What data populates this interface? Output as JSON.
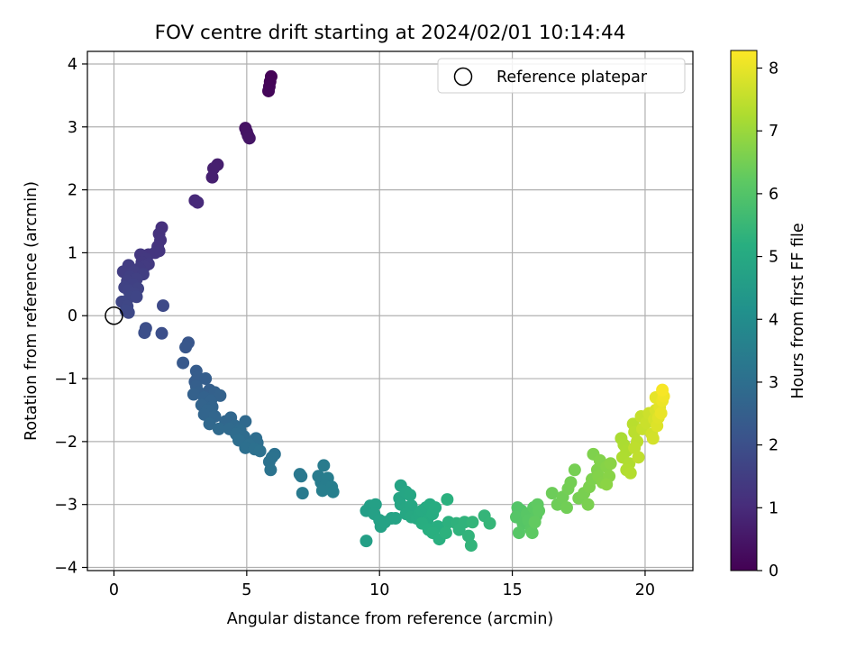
{
  "chart_data": {
    "type": "scatter",
    "title": "FOV centre drift starting at 2024/02/01 10:14:44",
    "xlabel": "Angular distance from reference (arcmin)",
    "ylabel": "Rotation from reference (arcmin)",
    "xlim": [
      -1.0,
      21.8
    ],
    "ylim": [
      -4.05,
      4.2
    ],
    "xticks": [
      0,
      5,
      10,
      15,
      20
    ],
    "yticks": [
      -4,
      -3,
      -2,
      -1,
      0,
      1,
      2,
      3,
      4
    ],
    "grid": true,
    "legend": {
      "placement": "upper-right",
      "entries": [
        "Reference platepar"
      ]
    },
    "reference_point": {
      "name": "Reference platepar",
      "x": 0,
      "y": 0
    },
    "colorbar": {
      "label": "Hours from first FF file",
      "colormap": "viridis",
      "min": 0,
      "max": 8.28,
      "ticks": [
        0,
        1,
        2,
        3,
        4,
        5,
        6,
        7,
        8
      ]
    },
    "points": [
      {
        "x": 5.92,
        "y": 3.8,
        "c": 0.05
      },
      {
        "x": 5.88,
        "y": 3.72,
        "c": 0.08
      },
      {
        "x": 5.85,
        "y": 3.64,
        "c": 0.1
      },
      {
        "x": 5.82,
        "y": 3.57,
        "c": 0.12
      },
      {
        "x": 4.95,
        "y": 2.98,
        "c": 0.4
      },
      {
        "x": 5.0,
        "y": 2.92,
        "c": 0.42
      },
      {
        "x": 5.05,
        "y": 2.86,
        "c": 0.44
      },
      {
        "x": 5.1,
        "y": 2.82,
        "c": 0.46
      },
      {
        "x": 3.9,
        "y": 2.4,
        "c": 0.7
      },
      {
        "x": 3.75,
        "y": 2.34,
        "c": 0.72
      },
      {
        "x": 3.7,
        "y": 2.2,
        "c": 0.74
      },
      {
        "x": 3.05,
        "y": 1.83,
        "c": 0.95
      },
      {
        "x": 3.15,
        "y": 1.8,
        "c": 0.97
      },
      {
        "x": 1.8,
        "y": 1.4,
        "c": 1.15
      },
      {
        "x": 1.7,
        "y": 1.3,
        "c": 1.18
      },
      {
        "x": 1.75,
        "y": 1.2,
        "c": 1.2
      },
      {
        "x": 1.65,
        "y": 1.1,
        "c": 1.23
      },
      {
        "x": 1.7,
        "y": 1.03,
        "c": 1.25
      },
      {
        "x": 1.55,
        "y": 1.0,
        "c": 1.28
      },
      {
        "x": 1.3,
        "y": 0.97,
        "c": 1.3
      },
      {
        "x": 1.0,
        "y": 0.97,
        "c": 1.33
      },
      {
        "x": 1.2,
        "y": 0.9,
        "c": 1.36
      },
      {
        "x": 1.05,
        "y": 0.85,
        "c": 1.38
      },
      {
        "x": 1.3,
        "y": 0.82,
        "c": 1.4
      },
      {
        "x": 1.15,
        "y": 0.78,
        "c": 1.42
      },
      {
        "x": 0.95,
        "y": 0.75,
        "c": 1.44
      },
      {
        "x": 0.55,
        "y": 0.8,
        "c": 1.46
      },
      {
        "x": 0.35,
        "y": 0.7,
        "c": 1.48
      },
      {
        "x": 0.75,
        "y": 0.7,
        "c": 1.5
      },
      {
        "x": 1.1,
        "y": 0.66,
        "c": 1.52
      },
      {
        "x": 0.6,
        "y": 0.62,
        "c": 1.54
      },
      {
        "x": 0.85,
        "y": 0.58,
        "c": 1.56
      },
      {
        "x": 0.5,
        "y": 0.55,
        "c": 1.58
      },
      {
        "x": 0.7,
        "y": 0.5,
        "c": 1.6
      },
      {
        "x": 0.4,
        "y": 0.45,
        "c": 1.62
      },
      {
        "x": 0.9,
        "y": 0.43,
        "c": 1.64
      },
      {
        "x": 0.55,
        "y": 0.4,
        "c": 1.66
      },
      {
        "x": 0.75,
        "y": 0.35,
        "c": 1.68
      },
      {
        "x": 0.6,
        "y": 0.3,
        "c": 1.7
      },
      {
        "x": 0.85,
        "y": 0.3,
        "c": 1.72
      },
      {
        "x": 0.3,
        "y": 0.22,
        "c": 1.74
      },
      {
        "x": 0.5,
        "y": 0.15,
        "c": 1.76
      },
      {
        "x": 0.45,
        "y": 0.08,
        "c": 1.78
      },
      {
        "x": 0.55,
        "y": 0.05,
        "c": 1.8
      },
      {
        "x": 1.85,
        "y": 0.16,
        "c": 1.85
      },
      {
        "x": 1.2,
        "y": -0.2,
        "c": 1.95
      },
      {
        "x": 1.15,
        "y": -0.27,
        "c": 1.98
      },
      {
        "x": 1.8,
        "y": -0.28,
        "c": 2.0
      },
      {
        "x": 2.8,
        "y": -0.43,
        "c": 2.2
      },
      {
        "x": 2.7,
        "y": -0.5,
        "c": 2.22
      },
      {
        "x": 2.6,
        "y": -0.75,
        "c": 2.3
      },
      {
        "x": 3.1,
        "y": -0.88,
        "c": 2.4
      },
      {
        "x": 3.15,
        "y": -0.98,
        "c": 2.42
      },
      {
        "x": 3.05,
        "y": -1.05,
        "c": 2.44
      },
      {
        "x": 3.45,
        "y": -1.0,
        "c": 2.46
      },
      {
        "x": 3.1,
        "y": -1.12,
        "c": 2.48
      },
      {
        "x": 3.6,
        "y": -1.18,
        "c": 2.5
      },
      {
        "x": 3.2,
        "y": -1.22,
        "c": 2.52
      },
      {
        "x": 3.0,
        "y": -1.25,
        "c": 2.54
      },
      {
        "x": 3.8,
        "y": -1.22,
        "c": 2.56
      },
      {
        "x": 4.0,
        "y": -1.27,
        "c": 2.58
      },
      {
        "x": 3.4,
        "y": -1.3,
        "c": 2.6
      },
      {
        "x": 3.65,
        "y": -1.35,
        "c": 2.62
      },
      {
        "x": 3.3,
        "y": -1.42,
        "c": 2.64
      },
      {
        "x": 3.7,
        "y": -1.45,
        "c": 2.66
      },
      {
        "x": 3.5,
        "y": -1.5,
        "c": 2.68
      },
      {
        "x": 3.4,
        "y": -1.57,
        "c": 2.7
      },
      {
        "x": 3.8,
        "y": -1.6,
        "c": 2.72
      },
      {
        "x": 4.4,
        "y": -1.62,
        "c": 2.74
      },
      {
        "x": 4.2,
        "y": -1.68,
        "c": 2.76
      },
      {
        "x": 3.6,
        "y": -1.72,
        "c": 2.78
      },
      {
        "x": 4.95,
        "y": -1.68,
        "c": 2.8
      },
      {
        "x": 4.55,
        "y": -1.75,
        "c": 2.82
      },
      {
        "x": 3.95,
        "y": -1.8,
        "c": 2.84
      },
      {
        "x": 4.35,
        "y": -1.8,
        "c": 2.86
      },
      {
        "x": 4.75,
        "y": -1.82,
        "c": 2.88
      },
      {
        "x": 4.6,
        "y": -1.88,
        "c": 2.9
      },
      {
        "x": 4.9,
        "y": -1.92,
        "c": 2.92
      },
      {
        "x": 5.35,
        "y": -1.95,
        "c": 2.94
      },
      {
        "x": 4.7,
        "y": -1.98,
        "c": 2.96
      },
      {
        "x": 5.4,
        "y": -2.02,
        "c": 2.98
      },
      {
        "x": 5.1,
        "y": -2.05,
        "c": 3.0
      },
      {
        "x": 4.95,
        "y": -2.1,
        "c": 3.02
      },
      {
        "x": 5.3,
        "y": -2.12,
        "c": 3.04
      },
      {
        "x": 5.5,
        "y": -2.15,
        "c": 3.06
      },
      {
        "x": 6.05,
        "y": -2.2,
        "c": 3.08
      },
      {
        "x": 5.95,
        "y": -2.25,
        "c": 3.1
      },
      {
        "x": 5.85,
        "y": -2.32,
        "c": 3.12
      },
      {
        "x": 5.9,
        "y": -2.45,
        "c": 3.14
      },
      {
        "x": 7.0,
        "y": -2.52,
        "c": 3.3
      },
      {
        "x": 7.05,
        "y": -2.55,
        "c": 3.32
      },
      {
        "x": 7.1,
        "y": -2.82,
        "c": 3.36
      },
      {
        "x": 7.7,
        "y": -2.55,
        "c": 3.4
      },
      {
        "x": 7.9,
        "y": -2.38,
        "c": 3.42
      },
      {
        "x": 7.8,
        "y": -2.65,
        "c": 3.44
      },
      {
        "x": 8.05,
        "y": -2.58,
        "c": 3.46
      },
      {
        "x": 7.95,
        "y": -2.7,
        "c": 3.48
      },
      {
        "x": 7.85,
        "y": -2.78,
        "c": 3.5
      },
      {
        "x": 8.2,
        "y": -2.72,
        "c": 3.52
      },
      {
        "x": 8.25,
        "y": -2.8,
        "c": 3.54
      },
      {
        "x": 9.5,
        "y": -3.1,
        "c": 4.6
      },
      {
        "x": 9.65,
        "y": -3.02,
        "c": 4.62
      },
      {
        "x": 9.5,
        "y": -3.58,
        "c": 4.64
      },
      {
        "x": 9.85,
        "y": -3.0,
        "c": 4.66
      },
      {
        "x": 9.8,
        "y": -3.15,
        "c": 4.68
      },
      {
        "x": 10.0,
        "y": -3.25,
        "c": 4.7
      },
      {
        "x": 10.05,
        "y": -3.35,
        "c": 4.72
      },
      {
        "x": 10.2,
        "y": -3.28,
        "c": 4.74
      },
      {
        "x": 10.45,
        "y": -3.22,
        "c": 4.76
      },
      {
        "x": 10.6,
        "y": -3.22,
        "c": 4.78
      },
      {
        "x": 10.8,
        "y": -2.7,
        "c": 4.8
      },
      {
        "x": 10.75,
        "y": -2.9,
        "c": 4.82
      },
      {
        "x": 10.8,
        "y": -3.0,
        "c": 4.84
      },
      {
        "x": 11.0,
        "y": -2.8,
        "c": 4.86
      },
      {
        "x": 11.15,
        "y": -2.85,
        "c": 4.88
      },
      {
        "x": 11.0,
        "y": -3.05,
        "c": 4.9
      },
      {
        "x": 11.2,
        "y": -3.02,
        "c": 4.92
      },
      {
        "x": 11.0,
        "y": -3.15,
        "c": 4.94
      },
      {
        "x": 11.2,
        "y": -3.2,
        "c": 4.96
      },
      {
        "x": 11.4,
        "y": -3.22,
        "c": 4.98
      },
      {
        "x": 11.5,
        "y": -3.15,
        "c": 5.0
      },
      {
        "x": 11.6,
        "y": -3.1,
        "c": 5.02
      },
      {
        "x": 11.75,
        "y": -3.05,
        "c": 5.04
      },
      {
        "x": 11.8,
        "y": -3.25,
        "c": 5.06
      },
      {
        "x": 11.9,
        "y": -3.0,
        "c": 5.08
      },
      {
        "x": 12.0,
        "y": -3.15,
        "c": 5.1
      },
      {
        "x": 12.1,
        "y": -3.05,
        "c": 5.12
      },
      {
        "x": 11.6,
        "y": -3.3,
        "c": 5.14
      },
      {
        "x": 11.85,
        "y": -3.4,
        "c": 5.16
      },
      {
        "x": 12.2,
        "y": -3.35,
        "c": 5.18
      },
      {
        "x": 12.0,
        "y": -3.45,
        "c": 5.2
      },
      {
        "x": 12.25,
        "y": -3.55,
        "c": 5.22
      },
      {
        "x": 12.55,
        "y": -2.92,
        "c": 5.24
      },
      {
        "x": 12.6,
        "y": -3.28,
        "c": 5.26
      },
      {
        "x": 12.5,
        "y": -3.45,
        "c": 5.28
      },
      {
        "x": 12.9,
        "y": -3.3,
        "c": 5.3
      },
      {
        "x": 13.0,
        "y": -3.4,
        "c": 5.32
      },
      {
        "x": 13.2,
        "y": -3.28,
        "c": 5.34
      },
      {
        "x": 13.35,
        "y": -3.5,
        "c": 5.36
      },
      {
        "x": 13.45,
        "y": -3.65,
        "c": 5.38
      },
      {
        "x": 13.5,
        "y": -3.28,
        "c": 5.4
      },
      {
        "x": 13.95,
        "y": -3.18,
        "c": 5.42
      },
      {
        "x": 14.15,
        "y": -3.3,
        "c": 5.44
      },
      {
        "x": 15.2,
        "y": -3.05,
        "c": 6.0
      },
      {
        "x": 15.35,
        "y": -3.1,
        "c": 6.02
      },
      {
        "x": 15.15,
        "y": -3.2,
        "c": 6.04
      },
      {
        "x": 15.4,
        "y": -3.3,
        "c": 6.06
      },
      {
        "x": 15.25,
        "y": -3.45,
        "c": 6.08
      },
      {
        "x": 15.55,
        "y": -3.15,
        "c": 6.1
      },
      {
        "x": 15.6,
        "y": -3.25,
        "c": 6.12
      },
      {
        "x": 15.7,
        "y": -3.4,
        "c": 6.14
      },
      {
        "x": 15.8,
        "y": -3.05,
        "c": 6.16
      },
      {
        "x": 15.9,
        "y": -3.18,
        "c": 6.18
      },
      {
        "x": 15.75,
        "y": -3.45,
        "c": 6.2
      },
      {
        "x": 15.95,
        "y": -3.0,
        "c": 6.22
      },
      {
        "x": 16.0,
        "y": -3.1,
        "c": 6.24
      },
      {
        "x": 15.85,
        "y": -3.28,
        "c": 6.26
      },
      {
        "x": 16.5,
        "y": -2.82,
        "c": 6.4
      },
      {
        "x": 16.7,
        "y": -3.0,
        "c": 6.42
      },
      {
        "x": 16.9,
        "y": -2.88,
        "c": 6.44
      },
      {
        "x": 17.05,
        "y": -3.05,
        "c": 6.46
      },
      {
        "x": 17.1,
        "y": -2.75,
        "c": 6.48
      },
      {
        "x": 17.2,
        "y": -2.65,
        "c": 6.5
      },
      {
        "x": 17.35,
        "y": -2.45,
        "c": 6.52
      },
      {
        "x": 17.5,
        "y": -2.9,
        "c": 6.54
      },
      {
        "x": 17.7,
        "y": -2.82,
        "c": 6.56
      },
      {
        "x": 17.85,
        "y": -3.0,
        "c": 6.58
      },
      {
        "x": 17.9,
        "y": -2.72,
        "c": 6.6
      },
      {
        "x": 18.0,
        "y": -2.6,
        "c": 6.62
      },
      {
        "x": 18.05,
        "y": -2.2,
        "c": 6.64
      },
      {
        "x": 18.2,
        "y": -2.45,
        "c": 6.66
      },
      {
        "x": 18.3,
        "y": -2.3,
        "c": 6.68
      },
      {
        "x": 18.25,
        "y": -2.55,
        "c": 6.7
      },
      {
        "x": 18.4,
        "y": -2.65,
        "c": 6.72
      },
      {
        "x": 18.55,
        "y": -2.4,
        "c": 6.74
      },
      {
        "x": 18.65,
        "y": -2.55,
        "c": 6.76
      },
      {
        "x": 18.7,
        "y": -2.35,
        "c": 6.78
      },
      {
        "x": 18.55,
        "y": -2.68,
        "c": 6.8
      },
      {
        "x": 19.1,
        "y": -1.95,
        "c": 7.2
      },
      {
        "x": 19.2,
        "y": -2.05,
        "c": 7.22
      },
      {
        "x": 19.3,
        "y": -2.15,
        "c": 7.24
      },
      {
        "x": 19.15,
        "y": -2.25,
        "c": 7.26
      },
      {
        "x": 19.4,
        "y": -2.35,
        "c": 7.28
      },
      {
        "x": 19.3,
        "y": -2.45,
        "c": 7.3
      },
      {
        "x": 19.45,
        "y": -2.5,
        "c": 7.32
      },
      {
        "x": 19.55,
        "y": -1.72,
        "c": 7.4
      },
      {
        "x": 19.6,
        "y": -1.85,
        "c": 7.42
      },
      {
        "x": 19.7,
        "y": -2.0,
        "c": 7.44
      },
      {
        "x": 19.6,
        "y": -2.1,
        "c": 7.46
      },
      {
        "x": 19.75,
        "y": -2.25,
        "c": 7.48
      },
      {
        "x": 19.85,
        "y": -1.6,
        "c": 7.55
      },
      {
        "x": 19.9,
        "y": -1.8,
        "c": 7.58
      },
      {
        "x": 20.05,
        "y": -1.7,
        "c": 7.62
      },
      {
        "x": 20.15,
        "y": -1.55,
        "c": 7.66
      },
      {
        "x": 20.25,
        "y": -1.88,
        "c": 7.7
      },
      {
        "x": 20.3,
        "y": -1.95,
        "c": 7.74
      },
      {
        "x": 20.35,
        "y": -1.65,
        "c": 7.78
      },
      {
        "x": 20.4,
        "y": -1.5,
        "c": 7.82
      },
      {
        "x": 20.45,
        "y": -1.75,
        "c": 7.86
      },
      {
        "x": 20.5,
        "y": -1.62,
        "c": 7.9
      },
      {
        "x": 20.55,
        "y": -1.45,
        "c": 7.94
      },
      {
        "x": 20.4,
        "y": -1.3,
        "c": 7.98
      },
      {
        "x": 20.6,
        "y": -1.55,
        "c": 8.02
      },
      {
        "x": 20.65,
        "y": -1.35,
        "c": 8.06
      },
      {
        "x": 20.7,
        "y": -1.28,
        "c": 8.12
      },
      {
        "x": 20.65,
        "y": -1.18,
        "c": 8.2
      }
    ]
  }
}
